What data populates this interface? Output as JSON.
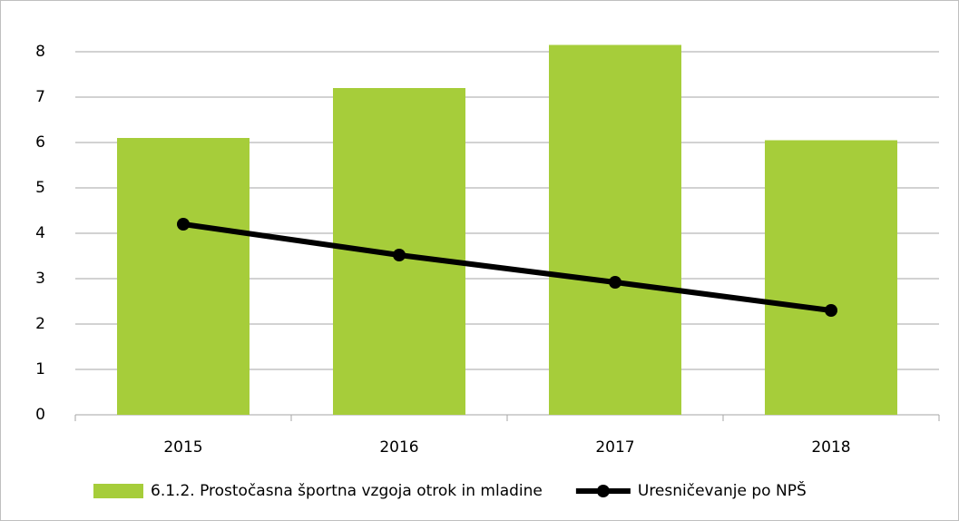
{
  "chart_data": {
    "type": "bar",
    "categories": [
      "2015",
      "2016",
      "2017",
      "2018"
    ],
    "series": [
      {
        "name": "6.1.2. Prostočasna športna vzgoja otrok in mladine",
        "color": "#a6cd3a",
        "type": "bar",
        "values": [
          6.1,
          7.2,
          8.15,
          6.05
        ]
      },
      {
        "name": "Uresničevanje po NPŠ",
        "color": "#000000",
        "type": "line",
        "values": [
          4.2,
          3.52,
          2.92,
          2.3
        ]
      }
    ],
    "ylim": [
      0,
      8
    ],
    "yticks": [
      0,
      1,
      2,
      3,
      4,
      5,
      6,
      7,
      8
    ],
    "grid": true,
    "legend": "bottom"
  }
}
